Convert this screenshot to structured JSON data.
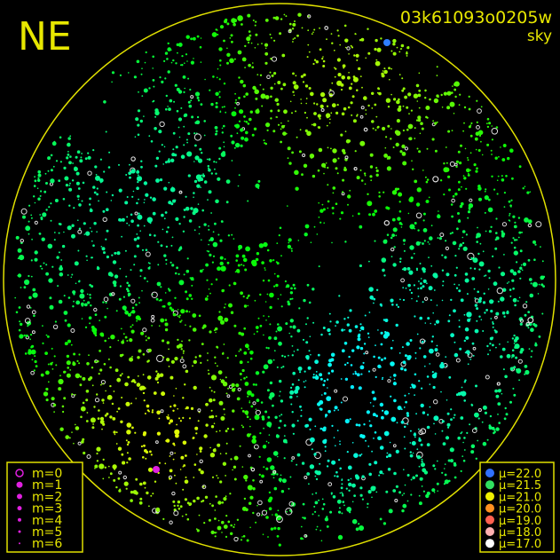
{
  "header": {
    "direction": "NE",
    "image_id": "03k61093o0205w",
    "image_type": "sky"
  },
  "magnitude_legend": [
    "m=0",
    "m=1",
    "m=2",
    "m=3",
    "m=4",
    "m=5",
    "m=6"
  ],
  "brightness_legend": [
    "μ=22.0",
    "μ=21.5",
    "μ=21.0",
    "μ=20.0",
    "μ=19.0",
    "μ=18.0",
    "μ=17.0"
  ]
}
